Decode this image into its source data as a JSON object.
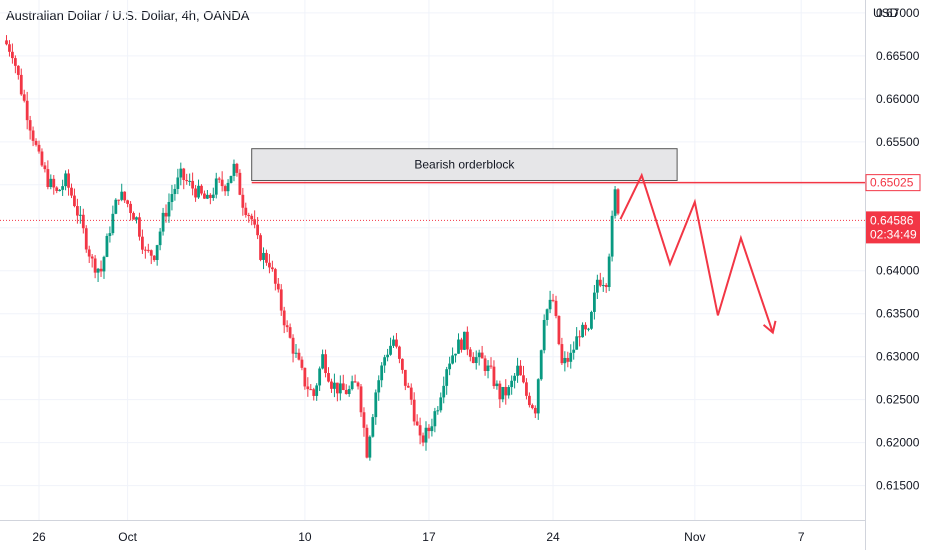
{
  "header": {
    "title": "Australian Dollar / U.S. Dollar, 4h, OANDA",
    "currency": "USD"
  },
  "colors": {
    "up": "#089981",
    "down": "#f23645",
    "tag_red": "#f23645",
    "zone_fill": "#e6e6e8",
    "zone_stroke": "#555555"
  },
  "chart_data": {
    "type": "candlestick",
    "title": "Australian Dollar / U.S. Dollar, 4h, OANDA",
    "ylabel": "USD",
    "ylim": [
      0.611,
      0.6715
    ],
    "y_ticks": [
      "0.61500",
      "0.62000",
      "0.62500",
      "0.63000",
      "0.63500",
      "0.64000",
      "0.64500",
      "0.65000",
      "0.65500",
      "0.66000",
      "0.66500",
      "0.67000"
    ],
    "x_ticks": [
      {
        "label": "26",
        "day": 26
      },
      {
        "label": "Oct",
        "day": 31
      },
      {
        "label": "10",
        "day": 41
      },
      {
        "label": "17",
        "day": 48
      },
      {
        "label": "24",
        "day": 55
      },
      {
        "label": "Nov",
        "day": 63
      },
      {
        "label": "7",
        "day": 69
      }
    ],
    "x_domain": [
      23.8,
      72.6
    ],
    "price_path": [
      [
        24.0,
        0.6668
      ],
      [
        24.5,
        0.6655
      ],
      [
        25.0,
        0.661
      ],
      [
        25.5,
        0.657
      ],
      [
        26.0,
        0.653
      ],
      [
        26.5,
        0.6505
      ],
      [
        27.0,
        0.649
      ],
      [
        27.5,
        0.6505
      ],
      [
        28.0,
        0.648
      ],
      [
        28.5,
        0.6445
      ],
      [
        29.0,
        0.641
      ],
      [
        29.5,
        0.64
      ],
      [
        30.0,
        0.645
      ],
      [
        30.5,
        0.649
      ],
      [
        31.0,
        0.6478
      ],
      [
        31.5,
        0.646
      ],
      [
        32.0,
        0.642
      ],
      [
        32.5,
        0.642
      ],
      [
        33.0,
        0.646
      ],
      [
        33.5,
        0.649
      ],
      [
        34.0,
        0.651
      ],
      [
        34.5,
        0.65
      ],
      [
        35.0,
        0.649
      ],
      [
        35.5,
        0.648
      ],
      [
        36.0,
        0.65
      ],
      [
        36.5,
        0.65
      ],
      [
        37.0,
        0.652
      ],
      [
        37.5,
        0.648
      ],
      [
        38.0,
        0.646
      ],
      [
        38.5,
        0.642
      ],
      [
        39.0,
        0.641
      ],
      [
        39.5,
        0.637
      ],
      [
        40.0,
        0.633
      ],
      [
        40.5,
        0.63
      ],
      [
        41.0,
        0.627
      ],
      [
        41.5,
        0.6255
      ],
      [
        42.0,
        0.63
      ],
      [
        42.5,
        0.627
      ],
      [
        43.0,
        0.626
      ],
      [
        43.5,
        0.626
      ],
      [
        44.0,
        0.627
      ],
      [
        44.5,
        0.619
      ],
      [
        45.0,
        0.626
      ],
      [
        45.5,
        0.63
      ],
      [
        46.0,
        0.632
      ],
      [
        46.5,
        0.628
      ],
      [
        47.0,
        0.625
      ],
      [
        47.5,
        0.62
      ],
      [
        48.0,
        0.6215
      ],
      [
        48.5,
        0.6245
      ],
      [
        49.0,
        0.629
      ],
      [
        49.5,
        0.631
      ],
      [
        50.0,
        0.632
      ],
      [
        50.5,
        0.63
      ],
      [
        51.0,
        0.6295
      ],
      [
        51.5,
        0.628
      ],
      [
        52.0,
        0.6255
      ],
      [
        52.5,
        0.626
      ],
      [
        53.0,
        0.6285
      ],
      [
        53.5,
        0.6255
      ],
      [
        54.0,
        0.624
      ],
      [
        54.5,
        0.635
      ],
      [
        55.0,
        0.6365
      ],
      [
        55.5,
        0.629
      ],
      [
        56.0,
        0.63
      ],
      [
        56.5,
        0.633
      ],
      [
        57.0,
        0.6325
      ],
      [
        57.5,
        0.639
      ],
      [
        58.0,
        0.639
      ],
      [
        58.5,
        0.649
      ],
      [
        58.8,
        0.646
      ]
    ],
    "orderblock": {
      "label": "Bearish orderblock",
      "y_top": 0.6542,
      "y_bottom": 0.6505,
      "x_start": 38.0,
      "x_end": 62.0
    },
    "resistance_line": {
      "value": 0.65025,
      "label": "0.65025",
      "x_start": 38.0
    },
    "current_price": {
      "value": 0.64586,
      "label": "0.64586",
      "countdown": "02:34:49"
    },
    "projection": [
      [
        58.8,
        0.646
      ],
      [
        60.0,
        0.6511
      ],
      [
        61.6,
        0.6408
      ],
      [
        63.0,
        0.648
      ],
      [
        64.3,
        0.6348
      ],
      [
        65.6,
        0.6438
      ],
      [
        67.4,
        0.6328
      ]
    ]
  }
}
